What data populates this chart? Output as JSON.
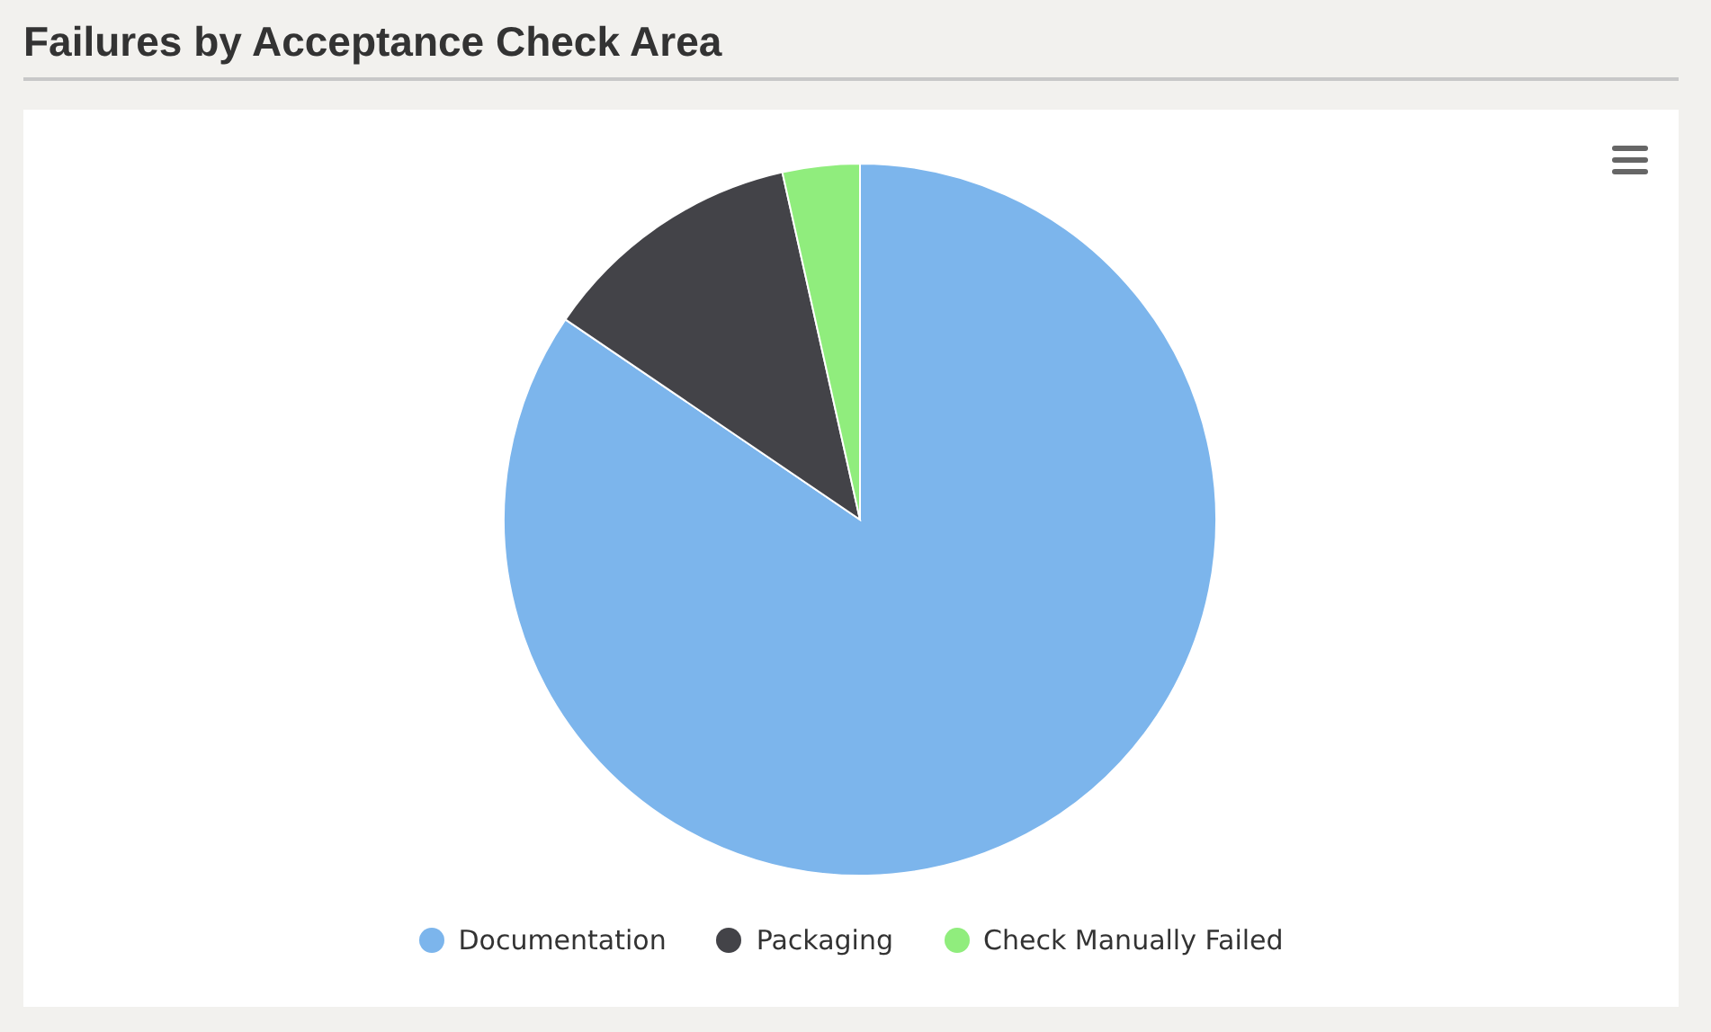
{
  "chart_data": {
    "type": "pie",
    "title": "Failures by Acceptance Check Area",
    "categories": [
      "Documentation",
      "Packaging",
      "Check Manually Failed"
    ],
    "values": [
      84.5,
      12,
      3.5
    ],
    "colors": [
      "#7cb5ec",
      "#434348",
      "#90ed7d"
    ],
    "legend": "bottom"
  }
}
